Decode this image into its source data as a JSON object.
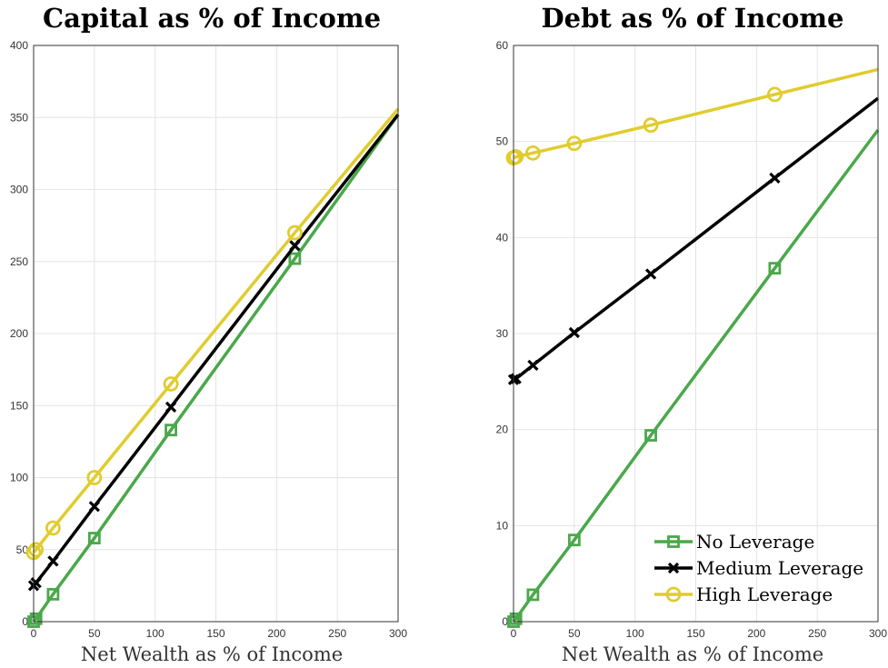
{
  "chart_data": [
    {
      "type": "line",
      "title": "Capital as % of Income",
      "xlabel": "Net Wealth as % of Income",
      "ylabel": "",
      "xlim": [
        0,
        300
      ],
      "ylim": [
        0,
        400
      ],
      "xticks": [
        0,
        50,
        100,
        150,
        200,
        250,
        300
      ],
      "yticks": [
        0,
        50,
        100,
        150,
        200,
        250,
        300,
        350,
        400
      ],
      "grid": true,
      "series": [
        {
          "name": "No Leverage",
          "color": "#4aa84a",
          "marker": "square",
          "x": [
            0,
            2,
            16,
            50,
            113,
            215,
            300
          ],
          "y": [
            0,
            2,
            19,
            58,
            133,
            252,
            352
          ],
          "marker_x": [
            0,
            2,
            16,
            50,
            113,
            215
          ],
          "marker_y": [
            0,
            2,
            19,
            58,
            133,
            252
          ]
        },
        {
          "name": "Medium Leverage",
          "color": "#000000",
          "marker": "x",
          "x": [
            0,
            2,
            16,
            50,
            113,
            215,
            300
          ],
          "y": [
            25,
            27,
            42,
            80,
            149,
            261,
            352
          ],
          "marker_x": [
            0,
            2,
            16,
            50,
            113,
            215
          ],
          "marker_y": [
            25,
            27,
            42,
            80,
            149,
            261
          ]
        },
        {
          "name": "High Leverage",
          "color": "#e0cc2e",
          "marker": "circle",
          "x": [
            0,
            2,
            16,
            50,
            113,
            215,
            300
          ],
          "y": [
            48,
            50,
            65,
            100,
            165,
            270,
            356
          ],
          "marker_x": [
            0,
            2,
            16,
            50,
            113,
            215
          ],
          "marker_y": [
            48,
            50,
            65,
            100,
            165,
            270
          ]
        }
      ]
    },
    {
      "type": "line",
      "title": "Debt as % of Income",
      "xlabel": "Net Wealth as % of Income",
      "ylabel": "",
      "xlim": [
        0,
        300
      ],
      "ylim": [
        0,
        60
      ],
      "xticks": [
        0,
        50,
        100,
        150,
        200,
        250,
        300
      ],
      "yticks": [
        0,
        10,
        20,
        30,
        40,
        50,
        60
      ],
      "grid": true,
      "legend_position": "bottom-right",
      "series": [
        {
          "name": "No Leverage",
          "color": "#4aa84a",
          "marker": "square",
          "x": [
            0,
            2,
            16,
            50,
            113,
            215,
            300
          ],
          "y": [
            0,
            0.3,
            2.8,
            8.5,
            19.4,
            36.8,
            51.2
          ],
          "marker_x": [
            0,
            2,
            16,
            50,
            113,
            215
          ],
          "marker_y": [
            0,
            0.3,
            2.8,
            8.5,
            19.4,
            36.8
          ]
        },
        {
          "name": "Medium Leverage",
          "color": "#000000",
          "marker": "x",
          "x": [
            0,
            2,
            16,
            50,
            113,
            215,
            300
          ],
          "y": [
            25.2,
            25.3,
            26.7,
            30.1,
            36.2,
            46.2,
            54.5
          ],
          "marker_x": [
            0,
            2,
            16,
            50,
            113,
            215
          ],
          "marker_y": [
            25.2,
            25.3,
            26.7,
            30.1,
            36.2,
            46.2
          ]
        },
        {
          "name": "High Leverage",
          "color": "#e0cc2e",
          "marker": "circle",
          "x": [
            0,
            2,
            16,
            50,
            113,
            215,
            300
          ],
          "y": [
            48.3,
            48.4,
            48.8,
            49.8,
            51.7,
            54.9,
            57.5
          ],
          "marker_x": [
            0,
            2,
            16,
            50,
            113,
            215
          ],
          "marker_y": [
            48.3,
            48.4,
            48.8,
            49.8,
            51.7,
            54.9
          ]
        }
      ]
    }
  ]
}
